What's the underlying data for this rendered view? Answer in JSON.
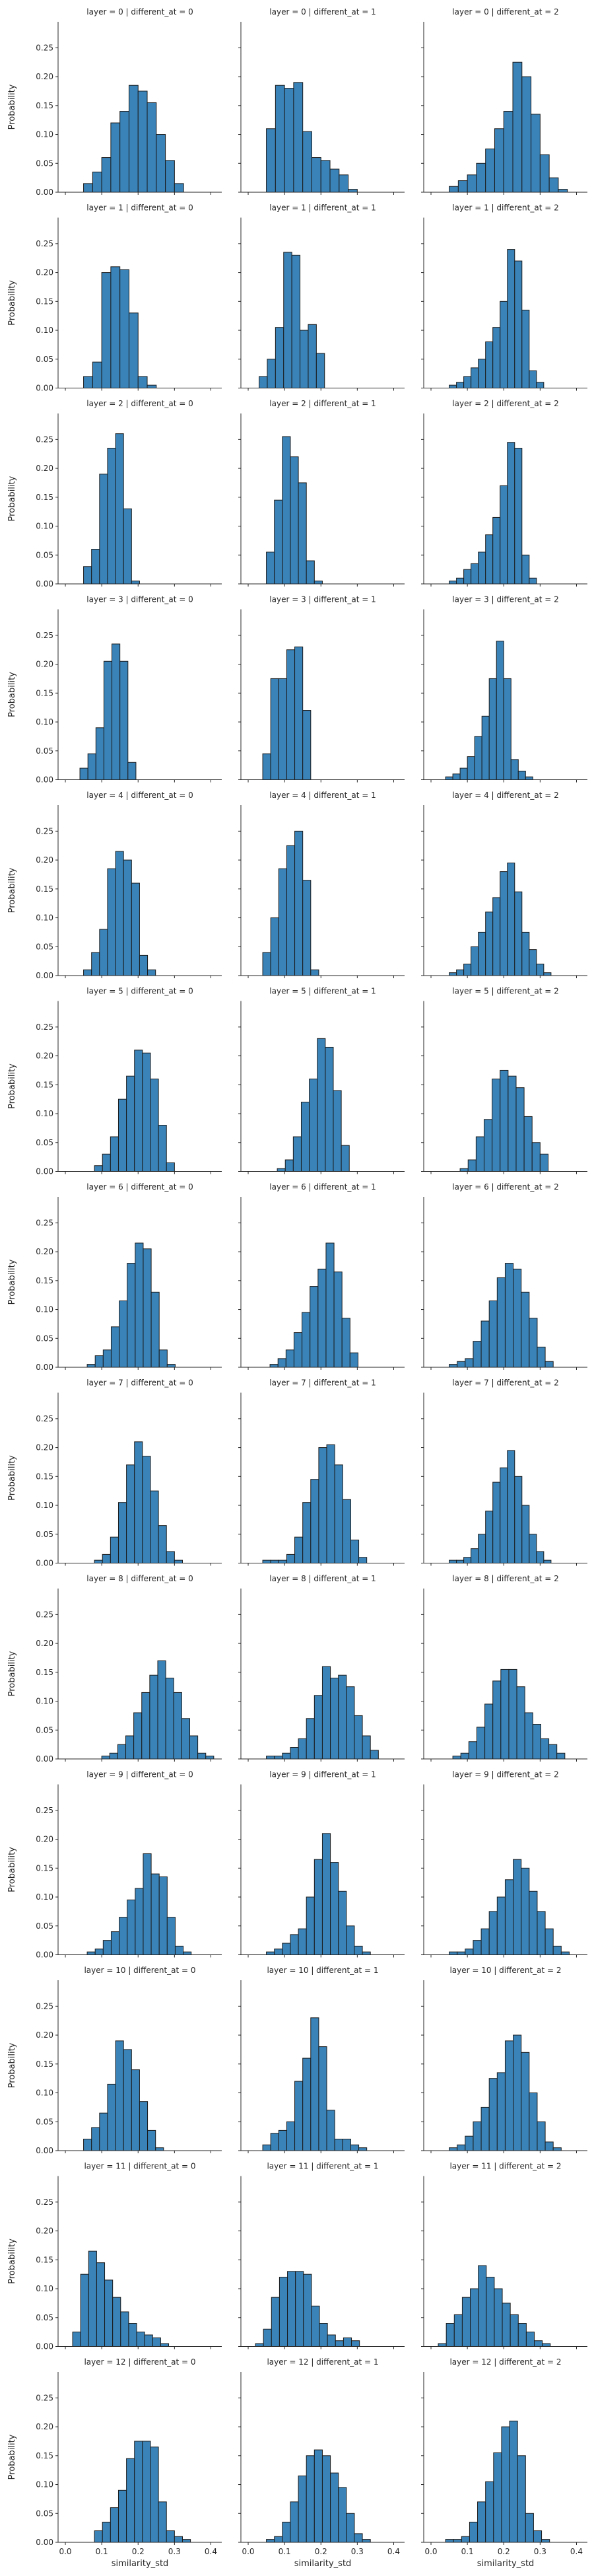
{
  "chart_data": {
    "type": "bar",
    "layout": "facet-grid",
    "facet_rows": "layer",
    "facet_cols": "different_at",
    "xlabel": "similarity_std",
    "ylabel": "Probability",
    "xlim": [
      -0.02,
      0.43
    ],
    "ylim": [
      0,
      0.295
    ],
    "xticks": [
      0.0,
      0.1,
      0.2,
      0.3,
      0.4
    ],
    "yticks": [
      0.0,
      0.05,
      0.1,
      0.15,
      0.2,
      0.25
    ],
    "xtick_labels": [
      "0.0",
      "0.1",
      "0.2",
      "0.3",
      "0.4"
    ],
    "ytick_labels": [
      "0.00",
      "0.05",
      "0.10",
      "0.15",
      "0.20",
      "0.25"
    ],
    "bar_color": "#3a83b8",
    "grid": false,
    "panels": [
      {
        "title": "layer = 0 | different_at = 0",
        "layer": 0,
        "different_at": 0,
        "bin_start": 0.05,
        "bin_width": 0.025,
        "values": [
          0.015,
          0.035,
          0.06,
          0.12,
          0.14,
          0.185,
          0.175,
          0.155,
          0.1,
          0.055,
          0.015
        ]
      },
      {
        "title": "layer = 0 | different_at = 1",
        "layer": 0,
        "different_at": 1,
        "bin_start": 0.05,
        "bin_width": 0.025,
        "values": [
          0.11,
          0.185,
          0.18,
          0.19,
          0.105,
          0.06,
          0.055,
          0.04,
          0.03,
          0.005
        ]
      },
      {
        "title": "layer = 0 | different_at = 2",
        "layer": 0,
        "different_at": 2,
        "bin_start": 0.05,
        "bin_width": 0.025,
        "values": [
          0.01,
          0.02,
          0.03,
          0.05,
          0.075,
          0.11,
          0.14,
          0.225,
          0.2,
          0.135,
          0.065,
          0.025,
          0.005
        ]
      },
      {
        "title": "layer = 1 | different_at = 0",
        "layer": 1,
        "different_at": 0,
        "bin_start": 0.05,
        "bin_width": 0.025,
        "values": [
          0.02,
          0.045,
          0.2,
          0.21,
          0.205,
          0.13,
          0.02,
          0.005
        ]
      },
      {
        "title": "layer = 1 | different_at = 1",
        "layer": 1,
        "different_at": 1,
        "bin_start": 0.03,
        "bin_width": 0.0225,
        "values": [
          0.02,
          0.05,
          0.105,
          0.235,
          0.23,
          0.1,
          0.11,
          0.06
        ]
      },
      {
        "title": "layer = 1 | different_at = 2",
        "layer": 1,
        "different_at": 2,
        "bin_start": 0.05,
        "bin_width": 0.02,
        "values": [
          0.005,
          0.01,
          0.02,
          0.035,
          0.05,
          0.08,
          0.105,
          0.15,
          0.24,
          0.22,
          0.135,
          0.03,
          0.01
        ]
      },
      {
        "title": "layer = 2 | different_at = 0",
        "layer": 2,
        "different_at": 0,
        "bin_start": 0.05,
        "bin_width": 0.022,
        "values": [
          0.03,
          0.06,
          0.19,
          0.235,
          0.26,
          0.13,
          0.005
        ]
      },
      {
        "title": "layer = 2 | different_at = 1",
        "layer": 2,
        "different_at": 1,
        "bin_start": 0.05,
        "bin_width": 0.022,
        "values": [
          0.055,
          0.145,
          0.255,
          0.22,
          0.175,
          0.04,
          0.005
        ]
      },
      {
        "title": "layer = 2 | different_at = 2",
        "layer": 2,
        "different_at": 2,
        "bin_start": 0.05,
        "bin_width": 0.02,
        "values": [
          0.005,
          0.01,
          0.025,
          0.035,
          0.055,
          0.085,
          0.115,
          0.17,
          0.245,
          0.235,
          0.05,
          0.01
        ]
      },
      {
        "title": "layer = 3 | different_at = 0",
        "layer": 3,
        "different_at": 0,
        "bin_start": 0.04,
        "bin_width": 0.022,
        "values": [
          0.02,
          0.045,
          0.09,
          0.205,
          0.235,
          0.205,
          0.03
        ]
      },
      {
        "title": "layer = 3 | different_at = 1",
        "layer": 3,
        "different_at": 1,
        "bin_start": 0.04,
        "bin_width": 0.022,
        "values": [
          0.045,
          0.175,
          0.175,
          0.225,
          0.23,
          0.12
        ]
      },
      {
        "title": "layer = 3 | different_at = 2",
        "layer": 3,
        "different_at": 2,
        "bin_start": 0.04,
        "bin_width": 0.02,
        "values": [
          0.005,
          0.01,
          0.02,
          0.04,
          0.075,
          0.11,
          0.175,
          0.24,
          0.175,
          0.035,
          0.015,
          0.005
        ]
      },
      {
        "title": "layer = 4 | different_at = 0",
        "layer": 4,
        "different_at": 0,
        "bin_start": 0.05,
        "bin_width": 0.022,
        "values": [
          0.01,
          0.04,
          0.08,
          0.185,
          0.215,
          0.2,
          0.16,
          0.035,
          0.01
        ]
      },
      {
        "title": "layer = 4 | different_at = 1",
        "layer": 4,
        "different_at": 1,
        "bin_start": 0.04,
        "bin_width": 0.022,
        "values": [
          0.04,
          0.1,
          0.185,
          0.225,
          0.25,
          0.165,
          0.01
        ]
      },
      {
        "title": "layer = 4 | different_at = 2",
        "layer": 4,
        "different_at": 2,
        "bin_start": 0.05,
        "bin_width": 0.02,
        "values": [
          0.005,
          0.01,
          0.02,
          0.05,
          0.075,
          0.11,
          0.135,
          0.18,
          0.195,
          0.145,
          0.075,
          0.045,
          0.02,
          0.005
        ]
      },
      {
        "title": "layer = 5 | different_at = 0",
        "layer": 5,
        "different_at": 0,
        "bin_start": 0.08,
        "bin_width": 0.022,
        "values": [
          0.01,
          0.03,
          0.06,
          0.125,
          0.165,
          0.21,
          0.205,
          0.16,
          0.08,
          0.015
        ]
      },
      {
        "title": "layer = 5 | different_at = 1",
        "layer": 5,
        "different_at": 1,
        "bin_start": 0.08,
        "bin_width": 0.022,
        "values": [
          0.005,
          0.02,
          0.06,
          0.12,
          0.16,
          0.23,
          0.215,
          0.14,
          0.045
        ]
      },
      {
        "title": "layer = 5 | different_at = 2",
        "layer": 5,
        "different_at": 2,
        "bin_start": 0.08,
        "bin_width": 0.022,
        "values": [
          0.005,
          0.02,
          0.06,
          0.09,
          0.16,
          0.175,
          0.165,
          0.145,
          0.095,
          0.05,
          0.03
        ]
      },
      {
        "title": "layer = 6 | different_at = 0",
        "layer": 6,
        "different_at": 0,
        "bin_start": 0.06,
        "bin_width": 0.022,
        "values": [
          0.005,
          0.02,
          0.03,
          0.07,
          0.115,
          0.18,
          0.215,
          0.205,
          0.13,
          0.03,
          0.005
        ]
      },
      {
        "title": "layer = 6 | different_at = 1",
        "layer": 6,
        "different_at": 1,
        "bin_start": 0.06,
        "bin_width": 0.022,
        "values": [
          0.005,
          0.015,
          0.03,
          0.06,
          0.095,
          0.14,
          0.17,
          0.215,
          0.165,
          0.085,
          0.025
        ]
      },
      {
        "title": "layer = 6 | different_at = 2",
        "layer": 6,
        "different_at": 2,
        "bin_start": 0.05,
        "bin_width": 0.022,
        "values": [
          0.005,
          0.01,
          0.015,
          0.045,
          0.08,
          0.115,
          0.155,
          0.18,
          0.17,
          0.13,
          0.085,
          0.035,
          0.01
        ]
      },
      {
        "title": "layer = 7 | different_at = 0",
        "layer": 7,
        "different_at": 0,
        "bin_start": 0.08,
        "bin_width": 0.022,
        "values": [
          0.005,
          0.015,
          0.045,
          0.105,
          0.17,
          0.21,
          0.185,
          0.125,
          0.065,
          0.02,
          0.005
        ]
      },
      {
        "title": "layer = 7 | different_at = 1",
        "layer": 7,
        "different_at": 1,
        "bin_start": 0.04,
        "bin_width": 0.022,
        "values": [
          0.005,
          0.005,
          0.005,
          0.015,
          0.045,
          0.105,
          0.145,
          0.2,
          0.205,
          0.17,
          0.11,
          0.04,
          0.01
        ]
      },
      {
        "title": "layer = 7 | different_at = 2",
        "layer": 7,
        "different_at": 2,
        "bin_start": 0.05,
        "bin_width": 0.02,
        "values": [
          0.005,
          0.005,
          0.01,
          0.025,
          0.05,
          0.09,
          0.14,
          0.165,
          0.195,
          0.15,
          0.1,
          0.05,
          0.02,
          0.005
        ]
      },
      {
        "title": "layer = 8 | different_at = 0",
        "layer": 8,
        "different_at": 0,
        "bin_start": 0.1,
        "bin_width": 0.022,
        "values": [
          0.005,
          0.01,
          0.025,
          0.04,
          0.08,
          0.115,
          0.145,
          0.17,
          0.14,
          0.115,
          0.07,
          0.04,
          0.01,
          0.005
        ]
      },
      {
        "title": "layer = 8 | different_at = 1",
        "layer": 8,
        "different_at": 1,
        "bin_start": 0.05,
        "bin_width": 0.022,
        "values": [
          0.005,
          0.005,
          0.01,
          0.02,
          0.035,
          0.07,
          0.11,
          0.16,
          0.14,
          0.145,
          0.125,
          0.075,
          0.04,
          0.015
        ]
      },
      {
        "title": "layer = 8 | different_at = 2",
        "layer": 8,
        "different_at": 2,
        "bin_start": 0.06,
        "bin_width": 0.022,
        "values": [
          0.005,
          0.01,
          0.03,
          0.055,
          0.095,
          0.135,
          0.155,
          0.155,
          0.125,
          0.08,
          0.06,
          0.035,
          0.025,
          0.01
        ]
      },
      {
        "title": "layer = 9 | different_at = 0",
        "layer": 9,
        "different_at": 0,
        "bin_start": 0.06,
        "bin_width": 0.022,
        "values": [
          0.005,
          0.01,
          0.025,
          0.04,
          0.065,
          0.095,
          0.115,
          0.175,
          0.14,
          0.135,
          0.065,
          0.015,
          0.005
        ]
      },
      {
        "title": "layer = 9 | different_at = 1",
        "layer": 9,
        "different_at": 1,
        "bin_start": 0.05,
        "bin_width": 0.022,
        "values": [
          0.005,
          0.01,
          0.02,
          0.035,
          0.045,
          0.1,
          0.165,
          0.21,
          0.16,
          0.11,
          0.05,
          0.015,
          0.005
        ]
      },
      {
        "title": "layer = 9 | different_at = 2",
        "layer": 9,
        "different_at": 2,
        "bin_start": 0.05,
        "bin_width": 0.022,
        "values": [
          0.005,
          0.005,
          0.01,
          0.025,
          0.045,
          0.075,
          0.1,
          0.13,
          0.165,
          0.15,
          0.11,
          0.075,
          0.045,
          0.015,
          0.005
        ]
      },
      {
        "title": "layer = 10 | different_at = 0",
        "layer": 10,
        "different_at": 0,
        "bin_start": 0.05,
        "bin_width": 0.022,
        "values": [
          0.02,
          0.04,
          0.065,
          0.115,
          0.19,
          0.175,
          0.14,
          0.085,
          0.035,
          0.005
        ]
      },
      {
        "title": "layer = 10 | different_at = 1",
        "layer": 10,
        "different_at": 1,
        "bin_start": 0.04,
        "bin_width": 0.022,
        "values": [
          0.01,
          0.03,
          0.035,
          0.05,
          0.12,
          0.16,
          0.23,
          0.18,
          0.07,
          0.02,
          0.02,
          0.01,
          0.005
        ]
      },
      {
        "title": "layer = 10 | different_at = 2",
        "layer": 10,
        "different_at": 2,
        "bin_start": 0.05,
        "bin_width": 0.022,
        "values": [
          0.005,
          0.01,
          0.025,
          0.05,
          0.075,
          0.125,
          0.135,
          0.19,
          0.2,
          0.17,
          0.1,
          0.05,
          0.015,
          0.005
        ]
      },
      {
        "title": "layer = 11 | different_at = 0",
        "layer": 11,
        "different_at": 0,
        "bin_start": 0.02,
        "bin_width": 0.022,
        "values": [
          0.025,
          0.125,
          0.165,
          0.145,
          0.115,
          0.085,
          0.06,
          0.04,
          0.025,
          0.02,
          0.015,
          0.005
        ]
      },
      {
        "title": "layer = 11 | different_at = 1",
        "layer": 11,
        "different_at": 1,
        "bin_start": 0.02,
        "bin_width": 0.022,
        "values": [
          0.005,
          0.03,
          0.085,
          0.12,
          0.13,
          0.13,
          0.125,
          0.07,
          0.04,
          0.02,
          0.01,
          0.015,
          0.01
        ]
      },
      {
        "title": "layer = 11 | different_at = 2",
        "layer": 11,
        "different_at": 2,
        "bin_start": 0.02,
        "bin_width": 0.022,
        "values": [
          0.005,
          0.04,
          0.055,
          0.085,
          0.1,
          0.14,
          0.12,
          0.1,
          0.075,
          0.055,
          0.04,
          0.025,
          0.01,
          0.005
        ]
      },
      {
        "title": "layer = 12 | different_at = 0",
        "layer": 12,
        "different_at": 0,
        "bin_start": 0.08,
        "bin_width": 0.022,
        "values": [
          0.02,
          0.035,
          0.06,
          0.09,
          0.145,
          0.175,
          0.175,
          0.165,
          0.07,
          0.02,
          0.01,
          0.005
        ]
      },
      {
        "title": "layer = 12 | different_at = 1",
        "layer": 12,
        "different_at": 1,
        "bin_start": 0.05,
        "bin_width": 0.022,
        "values": [
          0.005,
          0.01,
          0.035,
          0.07,
          0.115,
          0.15,
          0.16,
          0.15,
          0.12,
          0.095,
          0.05,
          0.015,
          0.005
        ]
      },
      {
        "title": "layer = 12 | different_at = 2",
        "layer": 12,
        "different_at": 2,
        "bin_start": 0.04,
        "bin_width": 0.022,
        "values": [
          0.005,
          0.005,
          0.01,
          0.035,
          0.07,
          0.105,
          0.155,
          0.2,
          0.21,
          0.15,
          0.05,
          0.02,
          0.005
        ]
      }
    ]
  }
}
